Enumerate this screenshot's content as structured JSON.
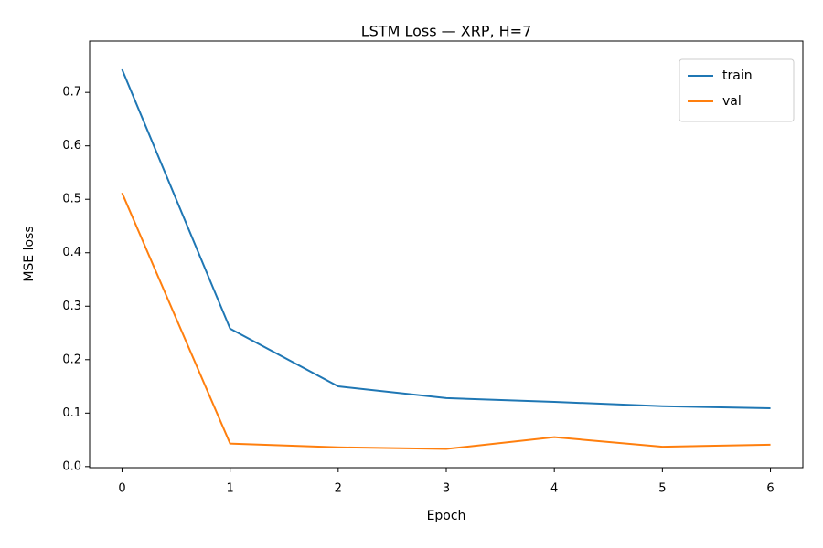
{
  "chart_data": {
    "type": "line",
    "title": "LSTM Loss — XRP, H=7",
    "xlabel": "Epoch",
    "ylabel": "MSE loss",
    "x": [
      0,
      1,
      2,
      3,
      4,
      5,
      6
    ],
    "series": [
      {
        "name": "train",
        "color": "#1f77b4",
        "values": [
          0.743,
          0.258,
          0.15,
          0.128,
          0.121,
          0.113,
          0.109
        ]
      },
      {
        "name": "val",
        "color": "#ff7f0e",
        "values": [
          0.512,
          0.043,
          0.036,
          0.033,
          0.055,
          0.037,
          0.041
        ]
      }
    ],
    "xlim": [
      -0.3,
      6.3
    ],
    "xticks": [
      0,
      1,
      2,
      3,
      4,
      5,
      6
    ],
    "ylim": [
      -0.002,
      0.796
    ],
    "yticks": [
      {
        "value": 0,
        "label": "0.0"
      },
      0.1,
      0.2,
      0.3,
      0.4,
      0.5,
      0.6,
      0.7
    ],
    "legend": "upper right",
    "grid": false
  }
}
